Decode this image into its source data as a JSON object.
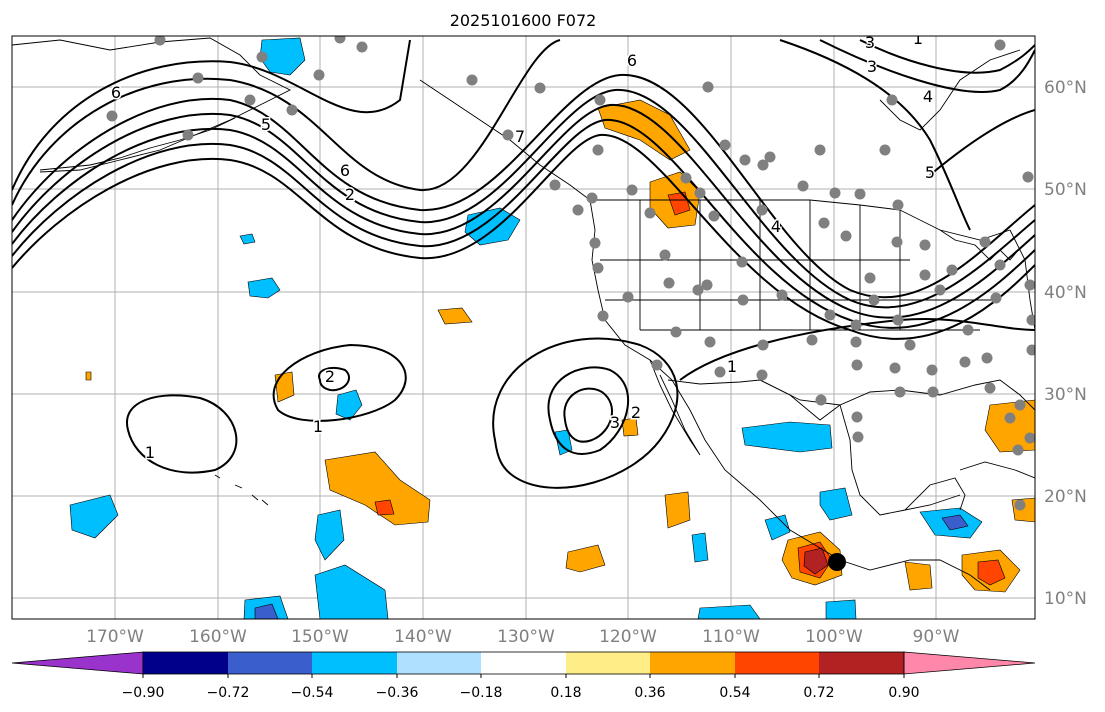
{
  "title": "2025101600 F072",
  "lon_labels": [
    "170°W",
    "160°W",
    "150°W",
    "140°W",
    "130°W",
    "120°W",
    "110°W",
    "100°W",
    "90°W"
  ],
  "lat_labels": [
    "60°N",
    "50°N",
    "40°N",
    "30°N",
    "20°N",
    "10°N"
  ],
  "contour_labels": [
    "6",
    "5",
    "6",
    "7",
    "2",
    "6",
    "3",
    "4",
    "5",
    "3",
    "1",
    "2",
    "1",
    "1",
    "2",
    "3",
    "1",
    "4"
  ],
  "colorbar": {
    "ticks": [
      "−0.90",
      "−0.72",
      "−0.54",
      "−0.36",
      "−0.18",
      "0.18",
      "0.36",
      "0.54",
      "0.72",
      "0.90"
    ],
    "colors": [
      "#9933cc",
      "#00008b",
      "#3a5fcd",
      "#00bfff",
      "#b0e0ff",
      "#ffffff",
      "#ffee88",
      "#ffa500",
      "#ff4500",
      "#b22222",
      "#ff88aa"
    ]
  },
  "colors": {
    "gray_dot": "#808080",
    "contour": "#000000",
    "grid": "#b0b0b0",
    "coast": "#000000"
  }
}
